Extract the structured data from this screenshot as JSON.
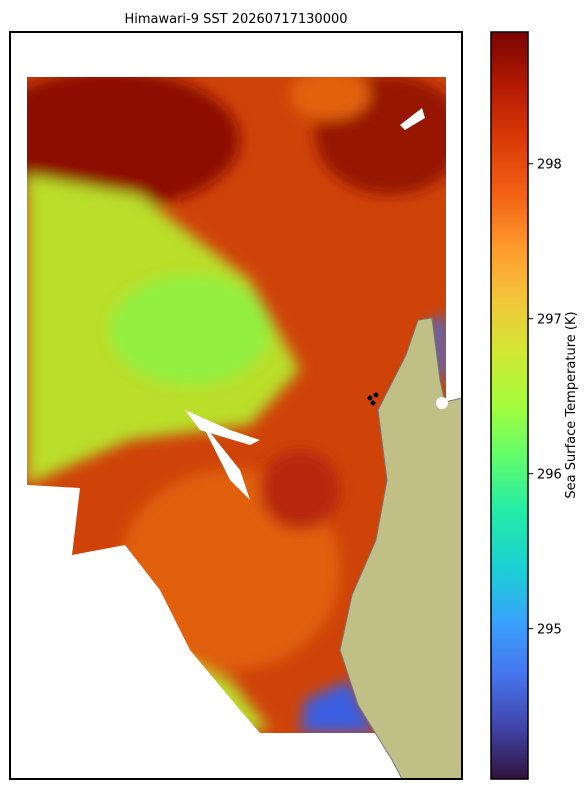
{
  "map": {
    "title": "Himawari-9 SST 20260717130000",
    "colorbar": {
      "label": "Sea Surface Temperature (K)",
      "lim": [
        294.03,
        298.85
      ],
      "ticks": [
        295,
        296,
        297,
        298
      ]
    }
  }
}
